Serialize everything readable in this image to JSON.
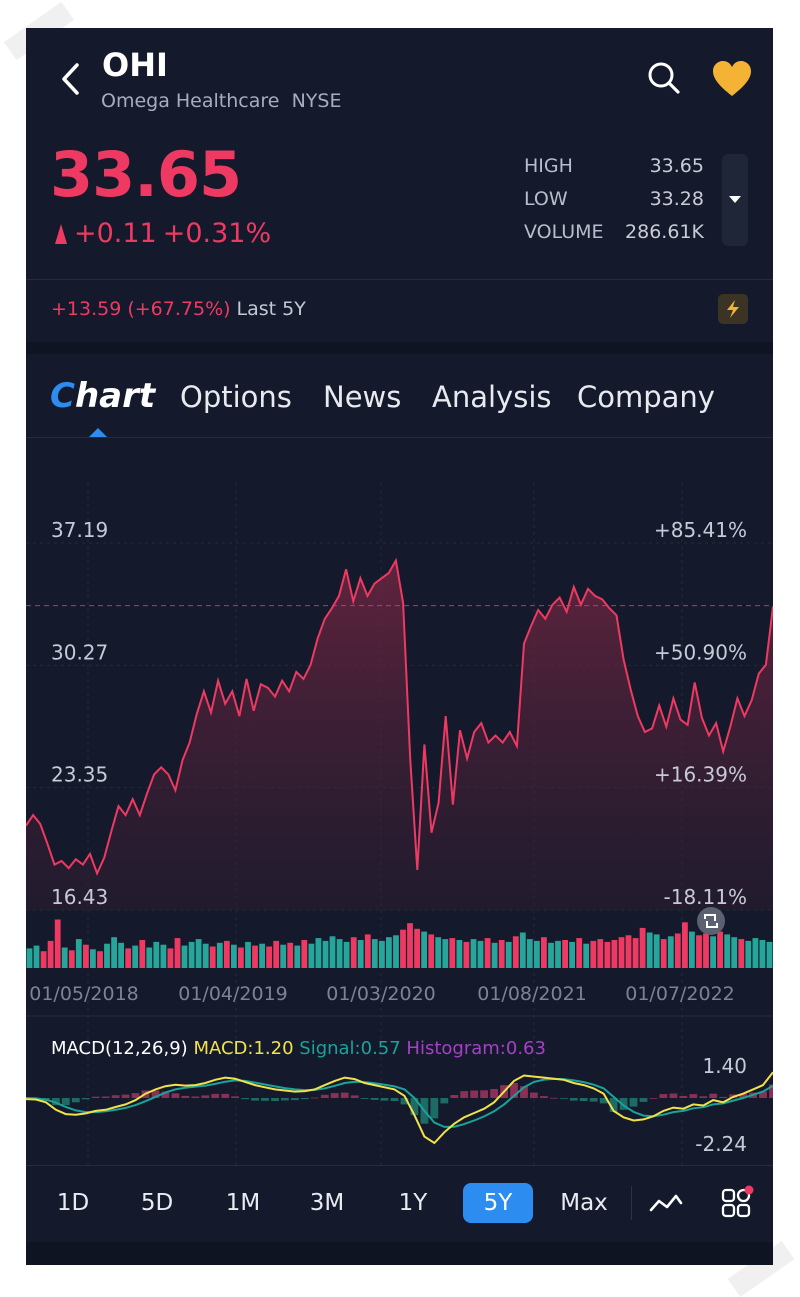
{
  "header": {
    "ticker": "OHI",
    "name": "Omega Healthcare",
    "exchange": "NYSE"
  },
  "quote": {
    "price": "33.65",
    "change": "+0.11",
    "change_pct": "+0.31%",
    "stats": [
      {
        "label": "HIGH",
        "value": "33.65"
      },
      {
        "label": "LOW",
        "value": "33.28"
      },
      {
        "label": "VOLUME",
        "value": "286.61K"
      }
    ],
    "period_change": "+13.59 (+67.75%)",
    "period_label": "Last 5Y"
  },
  "tabs": [
    {
      "label_prefix": "C",
      "label_rest": "hart",
      "active": true
    },
    {
      "label": "Options"
    },
    {
      "label": "News"
    },
    {
      "label": "Analysis"
    },
    {
      "label": "Company"
    }
  ],
  "chart_data": [
    {
      "type": "area",
      "y_ticks": [
        "37.19",
        "30.27",
        "23.35",
        "16.43"
      ],
      "pct_ticks": [
        "+85.41%",
        "+50.90%",
        "+16.39%",
        "-18.11%"
      ],
      "x_ticks": [
        "01/05/2018",
        "01/04/2019",
        "01/03/2020",
        "01/08/2021",
        "01/07/2022"
      ],
      "ylim": [
        16.43,
        37.19
      ],
      "last_price": 33.65,
      "series": [
        {
          "values": [
            21.2,
            21.8,
            21.3,
            20.2,
            19.0,
            19.2,
            18.8,
            19.3,
            19.0,
            19.6,
            18.5,
            19.4,
            20.9,
            22.3,
            21.8,
            22.7,
            21.8,
            23.0,
            24.1,
            24.5,
            24.1,
            23.2,
            24.9,
            25.9,
            27.5,
            28.8,
            27.6,
            29.4,
            28.1,
            28.8,
            27.4,
            29.5,
            27.7,
            29.2,
            29.0,
            28.5,
            29.4,
            28.8,
            29.9,
            29.5,
            30.3,
            31.8,
            32.9,
            33.5,
            34.2,
            35.7,
            33.9,
            35.2,
            34.2,
            34.9,
            35.2,
            35.5,
            36.2,
            33.8,
            25.0,
            18.7,
            25.8,
            20.8,
            22.5,
            27.4,
            22.4,
            26.6,
            25.0,
            26.5,
            27.0,
            25.9,
            26.3,
            25.9,
            26.5,
            25.7,
            31.5,
            32.5,
            33.4,
            32.9,
            33.7,
            34.1,
            33.3,
            34.7,
            33.7,
            34.6,
            34.2,
            34.0,
            33.5,
            33.1,
            30.6,
            28.9,
            27.4,
            26.5,
            26.7,
            28.0,
            26.8,
            28.4,
            27.2,
            26.9,
            29.3,
            27.3,
            26.3,
            27.0,
            25.4,
            26.8,
            28.4,
            27.4,
            28.3,
            29.8,
            30.3,
            33.6
          ]
        }
      ],
      "volume": [
        2.1,
        2.4,
        1.8,
        2.9,
        5.2,
        2.2,
        1.9,
        3.1,
        2.5,
        2.0,
        1.8,
        2.6,
        3.3,
        2.7,
        2.1,
        2.4,
        3.0,
        2.2,
        2.8,
        2.5,
        2.1,
        3.2,
        2.4,
        2.8,
        3.1,
        2.6,
        2.3,
        2.7,
        2.9,
        2.5,
        2.2,
        2.8,
        2.4,
        2.6,
        2.3,
        2.9,
        2.5,
        2.7,
        2.4,
        3.0,
        2.6,
        3.2,
        2.9,
        3.4,
        3.1,
        2.8,
        3.3,
        3.0,
        3.6,
        3.1,
        2.9,
        3.3,
        3.5,
        4.1,
        4.8,
        4.2,
        3.9,
        3.6,
        3.3,
        3.1,
        3.2,
        3.0,
        2.8,
        3.1,
        2.9,
        3.2,
        2.7,
        3.0,
        2.8,
        3.4,
        3.8,
        3.1,
        2.9,
        3.3,
        2.7,
        2.9,
        3.0,
        2.8,
        3.2,
        2.6,
        2.9,
        3.1,
        2.8,
        3.0,
        3.3,
        3.5,
        3.2,
        4.3,
        3.8,
        3.6,
        3.1,
        3.4,
        3.7,
        4.9,
        3.9,
        3.5,
        3.7,
        3.4,
        3.9,
        3.6,
        3.3,
        3.1,
        2.9,
        3.2,
        3.0,
        2.8
      ],
      "up_color": "#26a69a",
      "down_color": "#ee3a62",
      "line_color": "#ee3a62"
    },
    {
      "type": "line",
      "title": "MACD(12,26,9)",
      "macd_label": "MACD:1.20",
      "signal_label": "Signal:0.57",
      "hist_label": "Histogram:0.63",
      "y_ticks": [
        "1.40",
        "-2.24"
      ],
      "ylim": [
        -2.24,
        1.4
      ],
      "macd_color": "#f2e24a",
      "signal_color": "#1aa39a",
      "hist_color": "#a83fc9",
      "series": [
        {
          "name": "MACD",
          "values": [
            -0.05,
            -0.07,
            -0.2,
            -0.55,
            -0.75,
            -0.78,
            -0.72,
            -0.6,
            -0.55,
            -0.42,
            -0.3,
            -0.1,
            0.2,
            0.4,
            0.55,
            0.62,
            0.58,
            0.6,
            0.7,
            0.85,
            0.95,
            0.9,
            0.75,
            0.6,
            0.5,
            0.4,
            0.35,
            0.3,
            0.32,
            0.4,
            0.6,
            0.8,
            0.95,
            0.88,
            0.7,
            0.6,
            0.5,
            0.4,
            0.1,
            -0.8,
            -1.8,
            -2.1,
            -1.6,
            -1.2,
            -0.9,
            -0.7,
            -0.5,
            -0.2,
            0.3,
            0.8,
            1.05,
            1.0,
            0.95,
            0.9,
            0.85,
            0.7,
            0.6,
            0.45,
            0.2,
            -0.6,
            -0.9,
            -1.05,
            -1.0,
            -0.85,
            -0.6,
            -0.45,
            -0.5,
            -0.3,
            -0.35,
            -0.1,
            -0.2,
            0.05,
            0.2,
            0.4,
            0.6,
            1.2
          ]
        },
        {
          "name": "Signal",
          "values": [
            0.0,
            -0.02,
            -0.08,
            -0.22,
            -0.42,
            -0.58,
            -0.66,
            -0.66,
            -0.62,
            -0.55,
            -0.46,
            -0.33,
            -0.15,
            0.05,
            0.25,
            0.4,
            0.48,
            0.53,
            0.58,
            0.66,
            0.76,
            0.82,
            0.8,
            0.72,
            0.63,
            0.54,
            0.46,
            0.4,
            0.37,
            0.38,
            0.45,
            0.57,
            0.7,
            0.76,
            0.74,
            0.69,
            0.62,
            0.54,
            0.4,
            0.0,
            -0.6,
            -1.15,
            -1.35,
            -1.34,
            -1.22,
            -1.05,
            -0.86,
            -0.62,
            -0.3,
            0.1,
            0.5,
            0.75,
            0.86,
            0.89,
            0.88,
            0.82,
            0.74,
            0.62,
            0.45,
            0.05,
            -0.35,
            -0.65,
            -0.82,
            -0.85,
            -0.78,
            -0.66,
            -0.6,
            -0.48,
            -0.43,
            -0.3,
            -0.25,
            -0.12,
            0.0,
            0.15,
            0.3,
            0.57
          ]
        }
      ]
    }
  ],
  "timeframes": [
    "1D",
    "5D",
    "1M",
    "3M",
    "1Y",
    "5Y",
    "Max"
  ],
  "active_timeframe": "5Y",
  "colors": {
    "background": "#141a2b",
    "accent": "#2d8cf0",
    "down": "#ee3a62",
    "up": "#26a69a",
    "favorite": "#f5b335"
  }
}
